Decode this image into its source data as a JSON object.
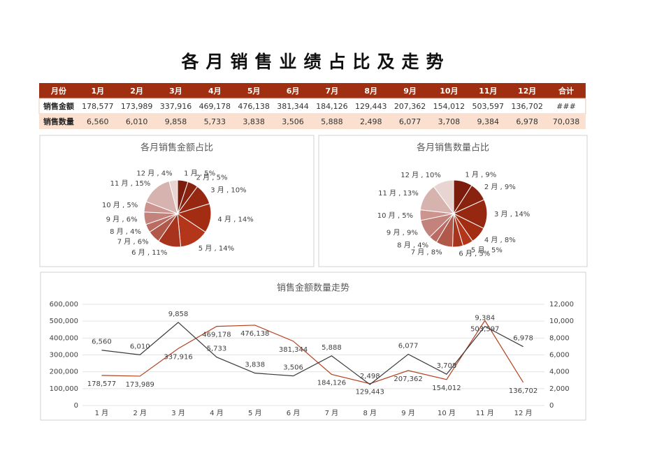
{
  "title": "各月销售业绩占比及走势",
  "table": {
    "header": [
      "月份",
      "1月",
      "2月",
      "3月",
      "4月",
      "5月",
      "6月",
      "7月",
      "8月",
      "9月",
      "10月",
      "11月",
      "12月",
      "合计"
    ],
    "rows": [
      [
        "销售金额",
        "178,577",
        "173,989",
        "337,916",
        "469,178",
        "476,138",
        "381,344",
        "184,126",
        "129,443",
        "207,362",
        "154,012",
        "503,597",
        "136,702",
        "###"
      ],
      [
        "销售数量",
        "6,560",
        "6,010",
        "9,858",
        "5,733",
        "3,838",
        "3,506",
        "5,888",
        "2,498",
        "6,077",
        "3,708",
        "9,384",
        "6,978",
        "70,038"
      ]
    ]
  },
  "chart_data": [
    {
      "type": "pie",
      "title": "各月销售金额占比",
      "categories": [
        "1 月",
        "2 月",
        "3 月",
        "4 月",
        "5 月",
        "6 月",
        "7 月",
        "8 月",
        "9 月",
        "10 月",
        "11 月",
        "12 月"
      ],
      "label_separator": " , ",
      "values": [
        5,
        5,
        10,
        14,
        14,
        11,
        6,
        4,
        6,
        5,
        15,
        4
      ],
      "value_labels": [
        "5%",
        "5%",
        "10%",
        "14%",
        "14%",
        "11%",
        "6%",
        "4%",
        "6%",
        "5%",
        "15%",
        "4%"
      ],
      "colors": [
        "#7b1c0c",
        "#8a2210",
        "#962811",
        "#a22d12",
        "#b3361a",
        "#a8341e",
        "#b0584a",
        "#bb6b62",
        "#c4827c",
        "#cb948e",
        "#d6b3ae",
        "#e8d5d2"
      ]
    },
    {
      "type": "pie",
      "title": "各月销售数量占比",
      "categories": [
        "1 月",
        "2 月",
        "3 月",
        "4 月",
        "5 月",
        "6 月",
        "7 月",
        "8 月",
        "9 月",
        "10 月",
        "11 月",
        "12 月"
      ],
      "label_separator": " , ",
      "values": [
        9,
        9,
        14,
        8,
        5,
        5,
        8,
        4,
        9,
        5,
        13,
        10
      ],
      "value_labels": [
        "9%",
        "9%",
        "14%",
        "8%",
        "5%",
        "5%",
        "8%",
        "4%",
        "9%",
        "5%",
        "13%",
        "10%"
      ],
      "colors": [
        "#7b1c0c",
        "#8a2210",
        "#962811",
        "#a22d12",
        "#b3361a",
        "#a8341e",
        "#b0584a",
        "#bb6b62",
        "#c4827c",
        "#cb948e",
        "#d6b3ae",
        "#e8d5d2"
      ]
    },
    {
      "type": "line",
      "title": "销售金额数量走势",
      "categories": [
        "1 月",
        "2 月",
        "3 月",
        "4 月",
        "5 月",
        "6 月",
        "7 月",
        "8 月",
        "9 月",
        "10 月",
        "11 月",
        "12 月"
      ],
      "series": [
        {
          "color": "#b5401e",
          "values": [
            178577,
            173989,
            337916,
            469178,
            476138,
            381344,
            184126,
            129443,
            207362,
            154012,
            503597,
            136702
          ],
          "value_labels": [
            "178,577",
            "173,989",
            "337,916",
            "469,178",
            "476,138",
            "381,344",
            "184,126",
            "129,443",
            "207,362",
            "154,012",
            "503,597",
            "136,702"
          ]
        },
        {
          "color": "#3a3a3a",
          "axis": "y2",
          "values": [
            6560,
            6010,
            9858,
            5733,
            3838,
            3506,
            5888,
            2498,
            6077,
            3708,
            9384,
            6978
          ],
          "value_labels": [
            "6,560",
            "6,010",
            "9,858",
            "5,733",
            "3,838",
            "3,506",
            "5,888",
            "2,498",
            "6,077",
            "3,708",
            "9,384",
            "6,978"
          ]
        }
      ],
      "ylim": [
        0,
        600000
      ],
      "yticks": [
        0,
        {
          "value": 100000,
          "label": "100,000"
        },
        {
          "value": 200000,
          "label": "200,000"
        },
        {
          "value": 300000,
          "label": "300,000"
        },
        {
          "value": 400000,
          "label": "400,000"
        },
        {
          "value": 500000,
          "label": "500,000"
        },
        {
          "value": 600000,
          "label": "600,000"
        }
      ],
      "y2lim": [
        0,
        12000
      ],
      "y2ticks": [
        0,
        {
          "value": 2000,
          "label": "2,000"
        },
        {
          "value": 4000,
          "label": "4,000"
        },
        {
          "value": 6000,
          "label": "6,000"
        },
        {
          "value": 8000,
          "label": "8,000"
        },
        {
          "value": 10000,
          "label": "10,000"
        },
        {
          "value": 12000,
          "label": "12,000"
        }
      ],
      "grid": true
    }
  ]
}
